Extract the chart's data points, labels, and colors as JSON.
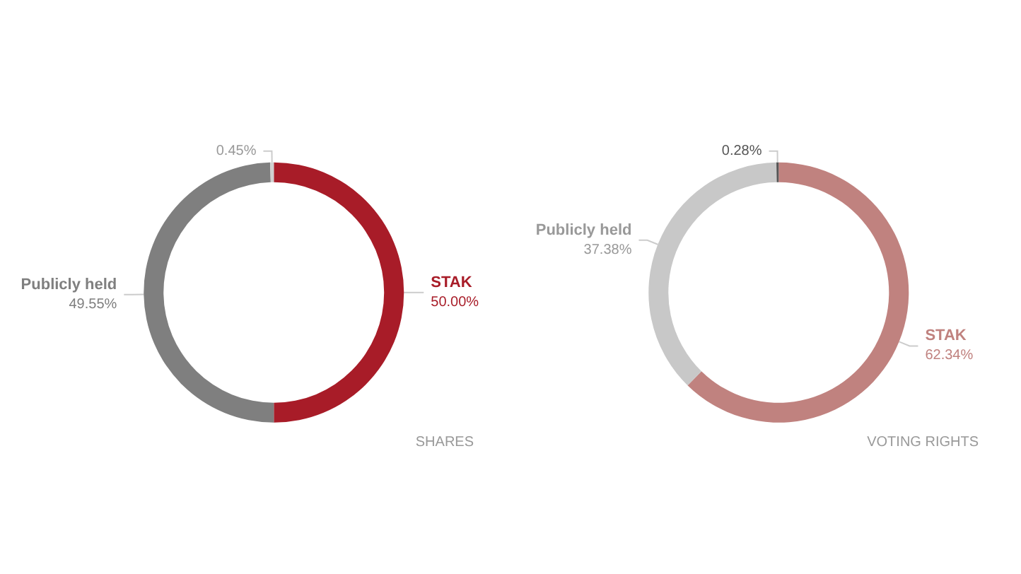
{
  "chart_data": [
    {
      "type": "donut",
      "categories": [
        "STAK",
        "Publicly held",
        null
      ],
      "values": [
        50.0,
        49.55,
        0.45
      ],
      "colors": [
        "#a81c28",
        "#7f7f7f",
        "#d0d0d0"
      ],
      "value_labels": [
        "50.00%",
        "49.55%",
        "0.45%"
      ],
      "annotations": [
        "SHARES"
      ],
      "legend": false
    },
    {
      "type": "donut",
      "categories": [
        "STAK",
        "Publicly held",
        null
      ],
      "values": [
        62.34,
        37.38,
        0.28
      ],
      "colors": [
        "#c0827f",
        "#c8c8c8",
        "#555555"
      ],
      "value_labels": [
        "62.34%",
        "37.38%",
        "0.28%"
      ],
      "annotations": [
        "VOTING RIGHTS"
      ],
      "legend": false
    }
  ]
}
